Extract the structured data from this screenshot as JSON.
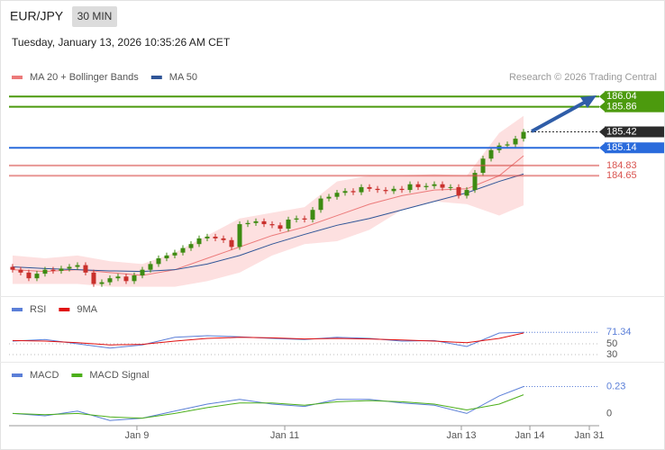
{
  "header": {
    "symbol": "EUR/JPY",
    "interval": "30 MIN",
    "timestamp": "Tuesday, January 13, 2026 10:35:26 AM CET"
  },
  "chart_data": [
    {
      "type": "candlestick",
      "source": "Research © 2026 Trading Central",
      "up_color": "#3d8b12",
      "down_color": "#c9302c",
      "xlim": [
        -0.44,
        72.33
      ],
      "ylim": [
        182.6,
        186.55
      ],
      "open": [
        183.05,
        183.0,
        182.95,
        182.85,
        182.93,
        183.0,
        182.98,
        183.02,
        183.05,
        183.08,
        182.95,
        182.75,
        182.78,
        182.85,
        182.88,
        182.8,
        182.9,
        183.0,
        183.1,
        183.2,
        183.25,
        183.3,
        183.38,
        183.45,
        183.55,
        183.58,
        183.55,
        183.52,
        183.4,
        183.8,
        183.82,
        183.85,
        183.8,
        183.78,
        183.72,
        183.88,
        183.9,
        183.88,
        184.05,
        184.25,
        184.28,
        184.35,
        184.38,
        184.36,
        184.45,
        184.42,
        184.4,
        184.38,
        184.42,
        184.4,
        184.5,
        184.45,
        184.47,
        184.5,
        184.44,
        184.45,
        184.3,
        184.4,
        184.7,
        184.95,
        185.1,
        185.18,
        185.2,
        185.3
      ],
      "high": [
        183.1,
        183.05,
        183.0,
        182.98,
        183.05,
        183.05,
        183.07,
        183.1,
        183.13,
        183.13,
        183.0,
        182.83,
        182.9,
        182.93,
        182.93,
        182.95,
        183.05,
        183.15,
        183.25,
        183.3,
        183.35,
        183.43,
        183.5,
        183.6,
        183.63,
        183.63,
        183.6,
        183.57,
        183.85,
        183.87,
        183.9,
        183.9,
        183.85,
        183.83,
        183.93,
        183.95,
        183.95,
        184.1,
        184.3,
        184.33,
        184.4,
        184.43,
        184.43,
        184.5,
        184.5,
        184.47,
        184.45,
        184.47,
        184.47,
        184.55,
        184.55,
        184.52,
        184.55,
        184.55,
        184.5,
        184.5,
        184.45,
        184.75,
        185.0,
        185.15,
        185.23,
        185.25,
        185.35,
        185.47
      ],
      "low": [
        182.95,
        182.9,
        182.8,
        182.8,
        182.88,
        182.93,
        182.93,
        182.97,
        183.0,
        182.9,
        182.7,
        182.7,
        182.73,
        182.8,
        182.75,
        182.75,
        182.85,
        182.95,
        183.05,
        183.15,
        183.2,
        183.25,
        183.33,
        183.4,
        183.5,
        183.5,
        183.47,
        183.35,
        183.35,
        183.75,
        183.77,
        183.75,
        183.73,
        183.67,
        183.67,
        183.83,
        183.83,
        183.83,
        184.0,
        184.2,
        184.23,
        184.3,
        184.31,
        184.31,
        184.37,
        184.35,
        184.33,
        184.33,
        184.35,
        184.35,
        184.4,
        184.4,
        184.42,
        184.39,
        184.39,
        184.25,
        184.25,
        184.35,
        184.65,
        184.9,
        185.05,
        185.13,
        185.15,
        185.25
      ],
      "close": [
        183.0,
        182.95,
        182.85,
        182.93,
        183.0,
        182.98,
        183.02,
        183.05,
        183.08,
        182.95,
        182.75,
        182.78,
        182.85,
        182.88,
        182.8,
        182.9,
        183.0,
        183.1,
        183.2,
        183.25,
        183.3,
        183.38,
        183.45,
        183.55,
        183.58,
        183.55,
        183.52,
        183.4,
        183.8,
        183.82,
        183.85,
        183.8,
        183.78,
        183.72,
        183.88,
        183.9,
        183.88,
        184.05,
        184.25,
        184.28,
        184.35,
        184.38,
        184.36,
        184.45,
        184.42,
        184.4,
        184.38,
        184.42,
        184.4,
        184.5,
        184.45,
        184.47,
        184.5,
        184.44,
        184.45,
        184.3,
        184.4,
        184.7,
        184.95,
        185.1,
        185.18,
        185.2,
        185.3,
        185.42
      ],
      "series": [
        {
          "name": "MA 20 + Bollinger Bands",
          "color": "#ec7a7a",
          "band_color": "#fde0e0",
          "x": [
            0,
            4,
            8,
            12,
            16,
            20,
            24,
            28,
            32,
            36,
            40,
            44,
            48,
            52,
            56,
            60,
            63
          ],
          "values": [
            183.0,
            182.97,
            183.0,
            182.95,
            182.9,
            183.0,
            183.2,
            183.4,
            183.6,
            183.75,
            183.95,
            184.15,
            184.3,
            184.4,
            184.42,
            184.65,
            185.0
          ],
          "upper": [
            183.25,
            183.2,
            183.25,
            183.15,
            183.1,
            183.3,
            183.6,
            183.9,
            184.0,
            184.1,
            184.55,
            184.65,
            184.65,
            184.68,
            184.65,
            185.4,
            185.7
          ],
          "lower": [
            182.75,
            182.75,
            182.75,
            182.7,
            182.7,
            182.7,
            182.8,
            182.95,
            183.25,
            183.45,
            183.5,
            183.7,
            184.05,
            184.2,
            184.15,
            183.95,
            184.13
          ]
        },
        {
          "name": "MA 50",
          "color": "#2f5597",
          "x": [
            0,
            4,
            8,
            12,
            16,
            20,
            24,
            28,
            32,
            36,
            40,
            44,
            48,
            52,
            56,
            60,
            63
          ],
          "values": [
            183.05,
            183.02,
            183.0,
            182.98,
            182.97,
            183.0,
            183.1,
            183.25,
            183.45,
            183.62,
            183.78,
            183.9,
            184.05,
            184.2,
            184.35,
            184.55,
            184.68
          ]
        }
      ],
      "levels": [
        {
          "value": 186.04,
          "color": "#4c9a0e",
          "style": "box",
          "line": "solid"
        },
        {
          "value": 185.86,
          "color": "#4c9a0e",
          "style": "box",
          "line": "solid"
        },
        {
          "value": 185.42,
          "color": "#2b2b2b",
          "style": "box",
          "line": "dotted"
        },
        {
          "value": 185.14,
          "color": "#2a6bdc",
          "style": "box",
          "line": "solid"
        },
        {
          "value": 184.83,
          "color": "#d9534f",
          "style": "text",
          "line": "solid"
        },
        {
          "value": 184.65,
          "color": "#d9534f",
          "style": "text",
          "line": "solid"
        }
      ]
    },
    {
      "type": "line",
      "xlim": [
        -0.44,
        72.33
      ],
      "ylim": [
        20,
        95
      ],
      "yticks": [
        50,
        30
      ],
      "grid": true,
      "last_value": 71.34,
      "series": [
        {
          "name": "RSI",
          "color": "#5b7fd8",
          "x": [
            0,
            4,
            8,
            12,
            16,
            20,
            24,
            28,
            32,
            36,
            40,
            44,
            48,
            52,
            56,
            60,
            63
          ],
          "values": [
            55,
            58,
            50,
            42,
            48,
            62,
            65,
            63,
            60,
            58,
            62,
            60,
            55,
            56,
            45,
            70,
            71.34
          ]
        },
        {
          "name": "9MA",
          "color": "#e01010",
          "x": [
            0,
            4,
            8,
            12,
            16,
            20,
            24,
            28,
            32,
            36,
            40,
            44,
            48,
            52,
            56,
            60,
            63
          ],
          "values": [
            56,
            55,
            52,
            48,
            49,
            55,
            60,
            62,
            61,
            59,
            60,
            59,
            57,
            55,
            52,
            60,
            70
          ]
        }
      ]
    },
    {
      "type": "line",
      "xlim": [
        -0.44,
        72.33
      ],
      "ylim": [
        -0.12,
        0.38
      ],
      "yticks": [
        0
      ],
      "grid": false,
      "last_value": 0.23,
      "xticks": [
        {
          "value": 15.33,
          "label": "Jan 9"
        },
        {
          "value": 33.56,
          "label": "Jan 11"
        },
        {
          "value": 55.33,
          "label": "Jan 13"
        },
        {
          "value": 63.78,
          "label": "Jan 14"
        },
        {
          "value": 71.11,
          "label": "Jan 31"
        }
      ],
      "series": [
        {
          "name": "MACD",
          "color": "#5b7fd8",
          "x": [
            0,
            4,
            8,
            12,
            16,
            20,
            24,
            28,
            32,
            36,
            40,
            44,
            48,
            52,
            56,
            60,
            63
          ],
          "values": [
            0.0,
            -0.02,
            0.02,
            -0.06,
            -0.04,
            0.02,
            0.08,
            0.12,
            0.08,
            0.06,
            0.12,
            0.12,
            0.09,
            0.07,
            0.0,
            0.15,
            0.23
          ]
        },
        {
          "name": "MACD Signal",
          "color": "#4caf1a",
          "x": [
            0,
            4,
            8,
            12,
            16,
            20,
            24,
            28,
            32,
            36,
            40,
            44,
            48,
            52,
            56,
            60,
            63
          ],
          "values": [
            0.0,
            -0.01,
            0.0,
            -0.03,
            -0.04,
            0.0,
            0.05,
            0.09,
            0.09,
            0.07,
            0.1,
            0.11,
            0.1,
            0.08,
            0.03,
            0.08,
            0.16
          ]
        }
      ]
    }
  ]
}
